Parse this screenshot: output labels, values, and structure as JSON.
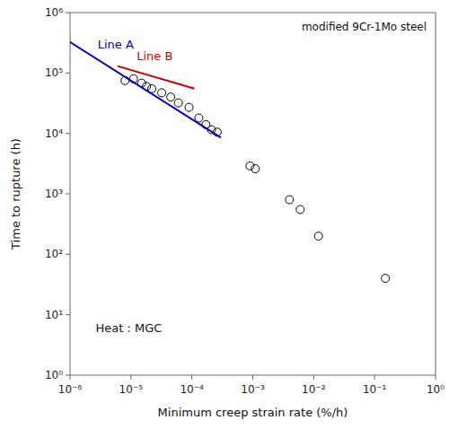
{
  "chart_data": {
    "type": "scatter",
    "x_label": "Minimum creep strain rate (%/h)",
    "y_label": "Time to rupture (h)",
    "annotations": [
      "modified 9Cr-1Mo steel",
      "Heat : MGC"
    ],
    "log": true,
    "grid": false,
    "xlim": [
      1e-06,
      1
    ],
    "ylim": [
      1,
      1000000
    ],
    "xticks": [
      {
        "value": 1e-06,
        "label": "10⁻⁶"
      },
      {
        "value": 1e-05,
        "label": "10⁻⁵"
      },
      {
        "value": 0.0001,
        "label": "10⁻⁴"
      },
      {
        "value": 0.001,
        "label": "10⁻³"
      },
      {
        "value": 0.01,
        "label": "10⁻²"
      },
      {
        "value": 0.1,
        "label": "10⁻¹"
      },
      {
        "value": 1,
        "label": "10⁰"
      }
    ],
    "yticks": [
      {
        "value": 1,
        "label": "10⁰"
      },
      {
        "value": 10,
        "label": "10¹"
      },
      {
        "value": 100,
        "label": "10²"
      },
      {
        "value": 1000,
        "label": "10³"
      },
      {
        "value": 10000,
        "label": "10⁴"
      },
      {
        "value": 100000,
        "label": "10⁵"
      },
      {
        "value": 1000000,
        "label": "10⁶"
      }
    ],
    "series": [
      {
        "type": "scatter",
        "marker": "open-circle",
        "color": "black",
        "x": [
          8e-06,
          1.1e-05,
          1.5e-05,
          1.8e-05,
          2.2e-05,
          3.2e-05,
          4.5e-05,
          6e-05,
          9e-05,
          0.00013,
          0.00017,
          0.00021,
          0.00026,
          0.0009,
          0.0011,
          0.004,
          0.006,
          0.012,
          0.15
        ],
        "values": [
          75000,
          80000,
          68000,
          60000,
          55000,
          47000,
          40000,
          32000,
          27000,
          18000,
          14000,
          11500,
          10500,
          2900,
          2600,
          800,
          550,
          200,
          40
        ]
      },
      {
        "type": "line",
        "name": "Line A",
        "color": "#0000cc",
        "x": [
          6e-07,
          0.0003
        ],
        "values": [
          450000,
          8500
        ]
      },
      {
        "type": "line",
        "name": "Line B",
        "color": "#cc0000",
        "x": [
          6e-06,
          0.00011
        ],
        "values": [
          130000,
          55000
        ]
      }
    ]
  }
}
